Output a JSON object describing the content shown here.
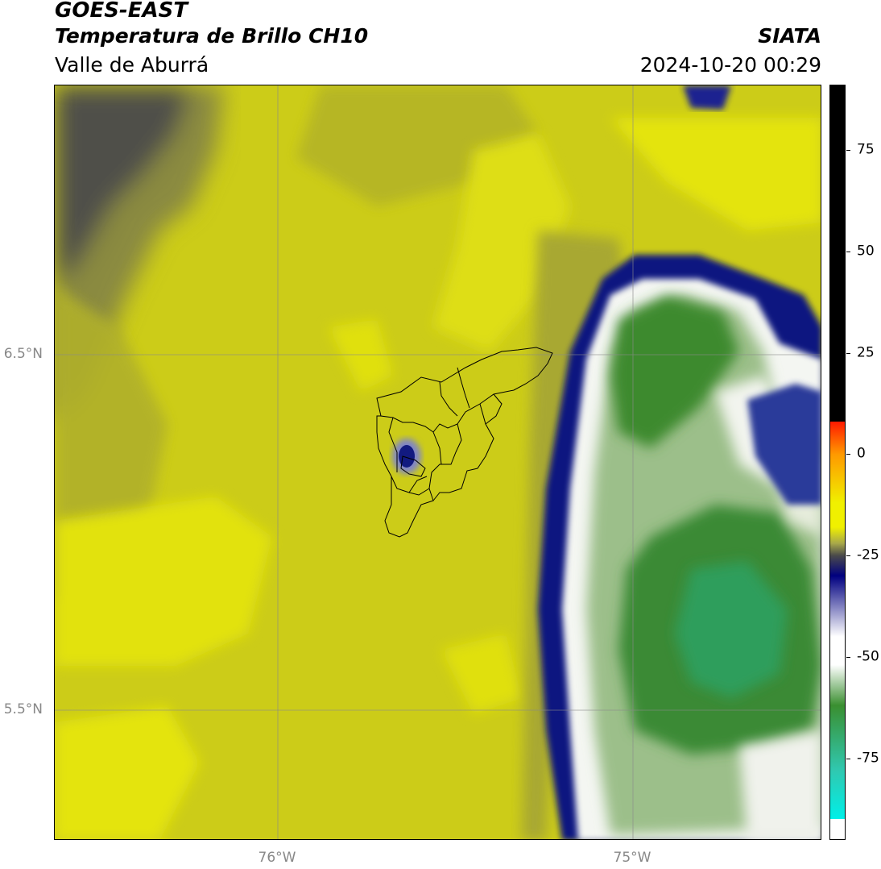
{
  "header": {
    "satellite": "GOES-EAST",
    "product": "Temperatura de Brillo CH10",
    "region": "Valle de Aburrá",
    "brand": "SIATA",
    "datetime": "2024-10-20 00:29"
  },
  "map": {
    "lat_labels": [
      "6.5°N",
      "5.5°N"
    ],
    "lon_labels": [
      "76°W",
      "75°W"
    ]
  },
  "colorbar": {
    "ticks": [
      "75",
      "50",
      "25",
      "0",
      "-25",
      "-50",
      "-75"
    ],
    "tick_values": [
      75,
      50,
      25,
      0,
      -25,
      -50,
      -75
    ],
    "range": [
      -95,
      91
    ],
    "colors": {
      "warm_black": "#000000",
      "red": "#ff1a00",
      "orange": "#ff9900",
      "yellow": "#f0f000",
      "olive": "#a8a84a",
      "gray": "#4a4a4a",
      "navy": "#000080",
      "white": "#ffffff",
      "green": "#3a8f30",
      "teal": "#30c8b0",
      "cyan": "#00f0e8"
    }
  }
}
